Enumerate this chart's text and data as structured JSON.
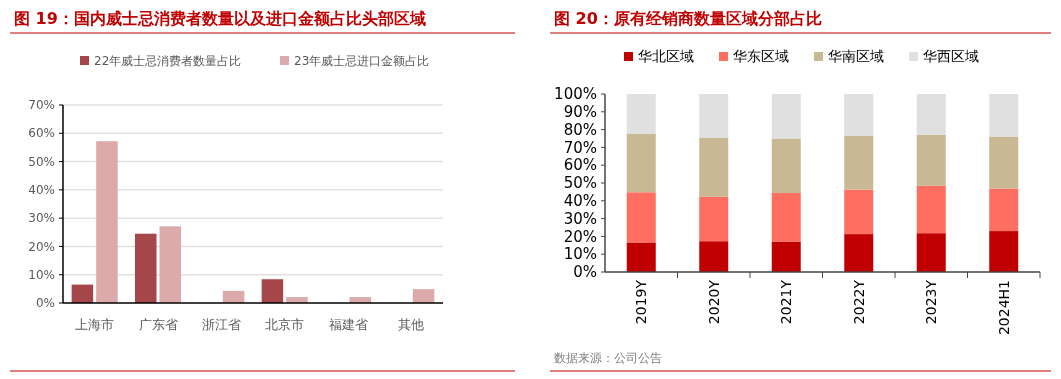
{
  "chart_data": [
    {
      "type": "bar",
      "title": "图 19：国内威士忌消费者数量以及进口金额占比头部区域",
      "categories": [
        "上海市",
        "广东省",
        "浙江省",
        "北京市",
        "福建省",
        "其他"
      ],
      "series": [
        {
          "name": "22年威士忌消费者数量占比",
          "color": "#a5474a",
          "values": [
            6.5,
            24.5,
            null,
            8.4,
            null,
            null
          ]
        },
        {
          "name": "23年威士忌进口金额占比",
          "color": "#dcaaab",
          "values": [
            57.2,
            27.1,
            4.3,
            2.1,
            2.1,
            4.9
          ]
        }
      ],
      "ylim": [
        0,
        70
      ],
      "yticks": [
        {
          "value": 0,
          "label": "0%"
        },
        {
          "value": 10,
          "label": "10%"
        },
        {
          "value": 20,
          "label": "20%"
        },
        {
          "value": 30,
          "label": "30%"
        },
        {
          "value": 40,
          "label": "40%"
        },
        {
          "value": 50,
          "label": "50%"
        },
        {
          "value": 60,
          "label": "60%"
        },
        {
          "value": 70,
          "label": "70%"
        }
      ],
      "grid": "y",
      "legend": "top"
    },
    {
      "type": "bar",
      "title": "图 20：原有经销商数量区域分部占比",
      "categories": [
        "2019Y",
        "2020Y",
        "2021Y",
        "2022Y",
        "2023Y",
        "2024H1"
      ],
      "stacked": true,
      "series": [
        {
          "name": "华北区域",
          "color": "#c00000",
          "values": [
            16.6,
            17.3,
            17.1,
            21.3,
            21.8,
            23.0
          ]
        },
        {
          "name": "华东区域",
          "color": "#ff6f61",
          "values": [
            28.2,
            24.9,
            27.3,
            25.0,
            26.6,
            23.9
          ]
        },
        {
          "name": "华南区域",
          "color": "#c8b994",
          "values": [
            33.0,
            33.3,
            30.6,
            30.3,
            28.8,
            29.2
          ]
        },
        {
          "name": "华西区域",
          "color": "#e0e0e0",
          "values": [
            22.2,
            24.5,
            25.0,
            23.4,
            22.8,
            23.9
          ]
        }
      ],
      "ylim": [
        0,
        100
      ],
      "yticks": [
        {
          "value": 0,
          "label": "0%"
        },
        {
          "value": 10,
          "label": "10%"
        },
        {
          "value": 20,
          "label": "20%"
        },
        {
          "value": 30,
          "label": "30%"
        },
        {
          "value": 40,
          "label": "40%"
        },
        {
          "value": 50,
          "label": "50%"
        },
        {
          "value": 60,
          "label": "60%"
        },
        {
          "value": 70,
          "label": "70%"
        },
        {
          "value": 80,
          "label": "80%"
        },
        {
          "value": 90,
          "label": "90%"
        },
        {
          "value": 100,
          "label": "100%"
        }
      ],
      "grid": false,
      "legend": "top",
      "annotations": [
        "数据来源：公司公告"
      ]
    }
  ]
}
